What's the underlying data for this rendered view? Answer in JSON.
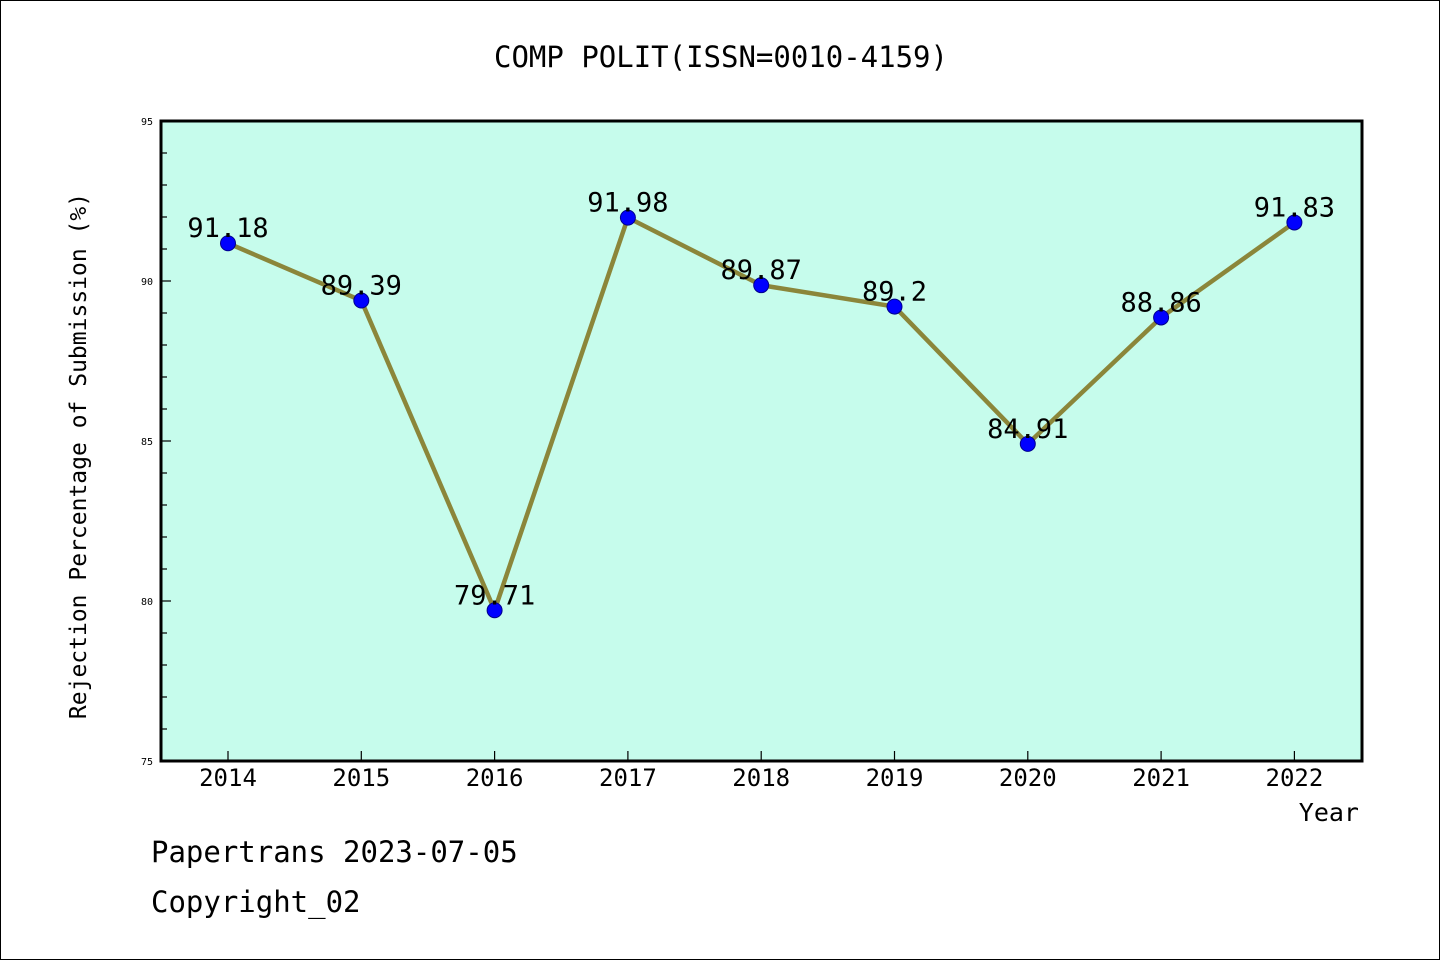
{
  "chart_data": {
    "type": "line",
    "title": "COMP POLIT(ISSN=0010-4159)",
    "xlabel": "Year",
    "ylabel": "Rejection Percentage of Submission (%)",
    "categories": [
      "2014",
      "2015",
      "2016",
      "2017",
      "2018",
      "2019",
      "2020",
      "2021",
      "2022"
    ],
    "values": [
      91.18,
      89.39,
      79.71,
      91.98,
      89.87,
      89.2,
      84.91,
      88.86,
      91.83
    ],
    "value_labels": [
      "91.18",
      "89.39",
      "79.71",
      "91.98",
      "89.87",
      "89.2",
      "84.91",
      "88.86",
      "91.83"
    ],
    "ylim": [
      75,
      95
    ],
    "yticks": [
      "75",
      "80",
      "85",
      "90",
      "95"
    ],
    "grid": false,
    "colors": {
      "plot_background": "#c6fcec",
      "line": "#8b863a",
      "marker": "#0000ff"
    }
  },
  "footer": {
    "line1": "Papertrans 2023-07-05",
    "line2": "Copyright_02"
  }
}
